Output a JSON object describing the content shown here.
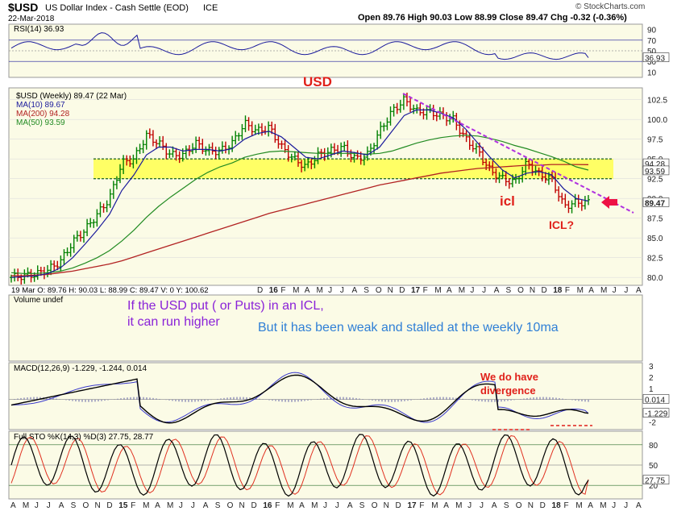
{
  "header": {
    "symbol": "$USD",
    "name": "US Dollar Index - Cash Settle (EOD)",
    "exchange": "ICE",
    "date": "22-Mar-2018",
    "brand": "© StockCharts.com",
    "quote": "Open 89.76  High 90.03  Low 88.99  Close 89.47  Chg -0.32 (-0.36%)"
  },
  "rsi": {
    "label": "RSI(14) 36.93",
    "value": 36.93,
    "ticks": [
      "90",
      "70",
      "50",
      "30",
      "10"
    ],
    "value_badge": "36.93"
  },
  "main": {
    "legend": [
      {
        "text": "$USD (Weekly) 89.47 (22 Mar)",
        "color": "#000000"
      },
      {
        "text": "MA(10) 89.67",
        "color": "#1a1a9c"
      },
      {
        "text": "MA(200) 94.28",
        "color": "#b22222"
      },
      {
        "text": "MA(50) 93.59",
        "color": "#228b22"
      }
    ],
    "y_ticks": [
      "102.5",
      "100.0",
      "97.5",
      "95.0",
      "92.5",
      "90.0",
      "87.5",
      "85.0",
      "82.5",
      "80.0"
    ],
    "badges": [
      "94.28",
      "93.59",
      "89.47"
    ],
    "ohlc_strip": "19 Mar O: 89.76  H: 90.03  L: 88.99  C: 89.47  V: 0  Y: 100.62",
    "x_labels": [
      "D",
      "16",
      "F",
      "M",
      "A",
      "M",
      "J",
      "J",
      "A",
      "S",
      "O",
      "N",
      "D",
      "17",
      "F",
      "M",
      "A",
      "M",
      "J",
      "J",
      "A",
      "S",
      "O",
      "N",
      "D",
      "18",
      "F",
      "M",
      "A",
      "M",
      "J",
      "J",
      "A"
    ]
  },
  "annotations": {
    "usd": "USD",
    "icl": "icl",
    "icl_q": "ICL?",
    "icl_note_line1": "If the USD put ( or Puts) in an ICL,",
    "icl_note_line2": "it can run higher",
    "weak_note": "But it has been weak and stalled at the weekly 10ma",
    "divergence_line1": "We do have",
    "divergence_line2": "divergence"
  },
  "volume": {
    "label": "Volume undef"
  },
  "macd": {
    "label": "MACD(12,26,9) -1.229, -1.244, 0.014",
    "ticks": [
      "3",
      "2",
      "1",
      "0",
      "-1",
      "-2"
    ],
    "badges": [
      "0.014",
      "-1.229"
    ]
  },
  "sto": {
    "label": "Full STO %K(14,3) %D(3) 27.75, 28.77",
    "ticks": [
      "80",
      "50",
      "20"
    ],
    "badge": "27.75"
  },
  "bottom_x_labels": [
    "A",
    "M",
    "J",
    "J",
    "A",
    "S",
    "O",
    "N",
    "D",
    "15",
    "F",
    "M",
    "A",
    "M",
    "J",
    "J",
    "A",
    "S",
    "O",
    "N",
    "D",
    "16",
    "F",
    "M",
    "A",
    "M",
    "J",
    "J",
    "A",
    "S",
    "O",
    "N",
    "D",
    "17",
    "F",
    "M",
    "A",
    "M",
    "J",
    "J",
    "A",
    "S",
    "O",
    "N",
    "D",
    "18",
    "F",
    "M",
    "A",
    "M",
    "J",
    "J",
    "A"
  ],
  "colors": {
    "panel_bg": "#fbfbe6",
    "highlight": "#ffff4d",
    "up_bar": "#008000",
    "down_bar": "#c00000",
    "ma10": "#1a1a9c",
    "ma200": "#b22222",
    "ma50": "#228b22",
    "trendline": "#b030e0",
    "arrow": "#ee1144",
    "anno_red": "#e0201a",
    "anno_purple": "#8a22d8",
    "anno_blue": "#2f7fd6"
  },
  "chart_data": {
    "type": "ohlc",
    "title": "$USD (Weekly)",
    "x": [
      "2014-04",
      "2014-05",
      "2014-06",
      "2014-07",
      "2014-08",
      "2014-09",
      "2014-10",
      "2014-11",
      "2014-12",
      "2015-01",
      "2015-02",
      "2015-03",
      "2015-04",
      "2015-05",
      "2015-06",
      "2015-07",
      "2015-08",
      "2015-09",
      "2015-10",
      "2015-11",
      "2015-12",
      "2016-01",
      "2016-02",
      "2016-03",
      "2016-04",
      "2016-05",
      "2016-06",
      "2016-07",
      "2016-08",
      "2016-09",
      "2016-10",
      "2016-11",
      "2016-12",
      "2017-01",
      "2017-02",
      "2017-03",
      "2017-04",
      "2017-05",
      "2017-06",
      "2017-07",
      "2017-08",
      "2017-09",
      "2017-10",
      "2017-11",
      "2017-12",
      "2018-01",
      "2018-02",
      "2018-03"
    ],
    "close": [
      80.0,
      80.2,
      80.4,
      81.0,
      82.0,
      84.5,
      86.0,
      88.0,
      90.0,
      94.5,
      95.0,
      98.0,
      97.0,
      95.5,
      95.5,
      97.0,
      96.0,
      96.0,
      97.0,
      99.5,
      98.5,
      99.0,
      96.5,
      95.0,
      94.0,
      95.5,
      96.0,
      96.5,
      95.0,
      95.5,
      98.5,
      101.0,
      102.5,
      101.0,
      101.0,
      100.5,
      100.0,
      97.5,
      96.0,
      93.5,
      92.5,
      92.0,
      94.5,
      93.0,
      92.5,
      89.0,
      89.5,
      89.47
    ],
    "ma10": [
      80.0,
      80.1,
      80.2,
      80.5,
      81.2,
      82.5,
      84.2,
      86.0,
      88.0,
      91.0,
      93.0,
      95.5,
      96.5,
      96.5,
      96.0,
      96.2,
      96.2,
      96.0,
      96.3,
      97.5,
      98.2,
      98.5,
      97.8,
      96.5,
      95.2,
      95.0,
      95.5,
      96.0,
      95.8,
      95.5,
      96.5,
      98.5,
      100.5,
      101.2,
      101.2,
      100.8,
      100.2,
      98.8,
      97.0,
      95.2,
      93.6,
      92.6,
      93.2,
      93.4,
      93.0,
      91.2,
      90.0,
      89.67
    ],
    "ma50": [
      80.6,
      80.5,
      80.5,
      80.6,
      80.8,
      81.2,
      81.8,
      82.5,
      83.4,
      84.6,
      86.0,
      87.6,
      89.0,
      90.2,
      91.3,
      92.4,
      93.3,
      94.0,
      94.5,
      95.2,
      95.6,
      95.9,
      96.0,
      95.9,
      95.8,
      95.7,
      95.7,
      95.7,
      95.7,
      95.6,
      95.7,
      96.0,
      96.5,
      97.0,
      97.4,
      97.7,
      97.9,
      98.0,
      97.9,
      97.6,
      97.2,
      96.7,
      96.3,
      95.8,
      95.3,
      94.7,
      94.0,
      93.59
    ],
    "ma200": [
      80.2,
      80.2,
      80.3,
      80.4,
      80.6,
      80.8,
      81.1,
      81.4,
      81.7,
      82.1,
      82.6,
      83.1,
      83.6,
      84.1,
      84.6,
      85.1,
      85.6,
      86.1,
      86.6,
      87.1,
      87.6,
      88.1,
      88.5,
      88.9,
      89.3,
      89.7,
      90.1,
      90.5,
      90.9,
      91.3,
      91.7,
      92.0,
      92.3,
      92.6,
      92.9,
      93.2,
      93.4,
      93.6,
      93.8,
      93.9,
      94.0,
      94.1,
      94.2,
      94.2,
      94.3,
      94.3,
      94.3,
      94.28
    ],
    "support_band": [
      92.5,
      95.0
    ],
    "ylim": [
      79,
      104
    ],
    "rsi_last": 36.93,
    "macd": {
      "macd": -1.229,
      "signal": -1.244,
      "histogram": 0.014
    },
    "full_sto": {
      "k": 27.75,
      "d": 28.77
    }
  }
}
